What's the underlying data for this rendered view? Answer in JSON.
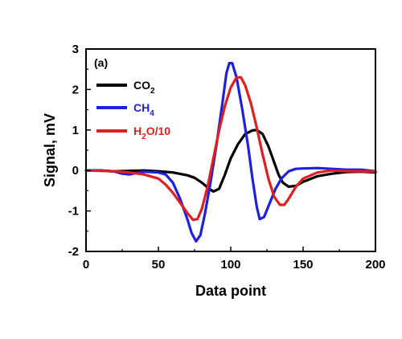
{
  "chart_data": {
    "type": "line",
    "panel_label": "(a)",
    "xlabel": "Data point",
    "ylabel": "Signal, mV",
    "xlim": [
      0,
      200
    ],
    "ylim": [
      -2,
      3
    ],
    "xticks": [
      0,
      50,
      100,
      150,
      200
    ],
    "yticks": [
      -2,
      -1,
      0,
      1,
      2,
      3
    ],
    "grid": false,
    "legend": "top-left",
    "series": [
      {
        "name": "CO2",
        "legend_main": "CO",
        "legend_sub": "2",
        "color": "#000000",
        "points": [
          [
            0,
            0.0
          ],
          [
            10,
            0.0
          ],
          [
            20,
            -0.02
          ],
          [
            30,
            -0.01
          ],
          [
            40,
            0.0
          ],
          [
            50,
            -0.02
          ],
          [
            60,
            -0.05
          ],
          [
            70,
            -0.12
          ],
          [
            75,
            -0.18
          ],
          [
            80,
            -0.3
          ],
          [
            85,
            -0.45
          ],
          [
            88,
            -0.52
          ],
          [
            92,
            -0.45
          ],
          [
            96,
            -0.1
          ],
          [
            100,
            0.3
          ],
          [
            105,
            0.65
          ],
          [
            110,
            0.9
          ],
          [
            115,
            0.99
          ],
          [
            118,
            1.0
          ],
          [
            122,
            0.9
          ],
          [
            126,
            0.6
          ],
          [
            130,
            0.2
          ],
          [
            133,
            -0.1
          ],
          [
            136,
            -0.3
          ],
          [
            140,
            -0.4
          ],
          [
            145,
            -0.38
          ],
          [
            150,
            -0.28
          ],
          [
            160,
            -0.14
          ],
          [
            170,
            -0.08
          ],
          [
            180,
            -0.04
          ],
          [
            190,
            -0.03
          ],
          [
            200,
            -0.05
          ]
        ]
      },
      {
        "name": "CH4",
        "legend_main": "CH",
        "legend_sub": "4",
        "color": "#1f1fdf",
        "points": [
          [
            0,
            0.0
          ],
          [
            10,
            0.0
          ],
          [
            20,
            -0.03
          ],
          [
            25,
            -0.08
          ],
          [
            30,
            -0.1
          ],
          [
            35,
            -0.06
          ],
          [
            40,
            -0.03
          ],
          [
            50,
            -0.05
          ],
          [
            55,
            -0.1
          ],
          [
            60,
            -0.3
          ],
          [
            65,
            -0.7
          ],
          [
            70,
            -1.2
          ],
          [
            73,
            -1.55
          ],
          [
            76,
            -1.75
          ],
          [
            79,
            -1.6
          ],
          [
            82,
            -1.1
          ],
          [
            86,
            -0.3
          ],
          [
            90,
            0.6
          ],
          [
            94,
            1.6
          ],
          [
            97,
            2.4
          ],
          [
            99,
            2.65
          ],
          [
            101,
            2.65
          ],
          [
            104,
            2.3
          ],
          [
            108,
            1.5
          ],
          [
            112,
            0.6
          ],
          [
            115,
            -0.2
          ],
          [
            118,
            -0.9
          ],
          [
            120,
            -1.2
          ],
          [
            123,
            -1.15
          ],
          [
            127,
            -0.8
          ],
          [
            131,
            -0.45
          ],
          [
            135,
            -0.2
          ],
          [
            140,
            -0.02
          ],
          [
            145,
            0.04
          ],
          [
            150,
            0.05
          ],
          [
            160,
            0.06
          ],
          [
            170,
            0.04
          ],
          [
            180,
            0.02
          ],
          [
            190,
            0.02
          ],
          [
            200,
            -0.02
          ]
        ]
      },
      {
        "name": "H2O/10",
        "legend_main": "H",
        "legend_sub": "2",
        "legend_tail": "O/10",
        "color": "#e01f1f",
        "points": [
          [
            0,
            0.0
          ],
          [
            10,
            -0.01
          ],
          [
            20,
            -0.02
          ],
          [
            30,
            -0.05
          ],
          [
            40,
            -0.1
          ],
          [
            50,
            -0.2
          ],
          [
            55,
            -0.35
          ],
          [
            60,
            -0.55
          ],
          [
            65,
            -0.8
          ],
          [
            70,
            -1.05
          ],
          [
            74,
            -1.22
          ],
          [
            77,
            -1.2
          ],
          [
            80,
            -0.95
          ],
          [
            84,
            -0.4
          ],
          [
            88,
            0.3
          ],
          [
            92,
            1.0
          ],
          [
            96,
            1.6
          ],
          [
            100,
            2.05
          ],
          [
            104,
            2.3
          ],
          [
            107,
            2.3
          ],
          [
            110,
            2.1
          ],
          [
            114,
            1.65
          ],
          [
            118,
            1.05
          ],
          [
            122,
            0.4
          ],
          [
            126,
            -0.2
          ],
          [
            130,
            -0.65
          ],
          [
            134,
            -0.85
          ],
          [
            137,
            -0.85
          ],
          [
            140,
            -0.7
          ],
          [
            145,
            -0.4
          ],
          [
            150,
            -0.2
          ],
          [
            160,
            -0.05
          ],
          [
            170,
            0.0
          ],
          [
            180,
            -0.02
          ],
          [
            190,
            -0.02
          ],
          [
            200,
            -0.03
          ]
        ]
      }
    ]
  }
}
